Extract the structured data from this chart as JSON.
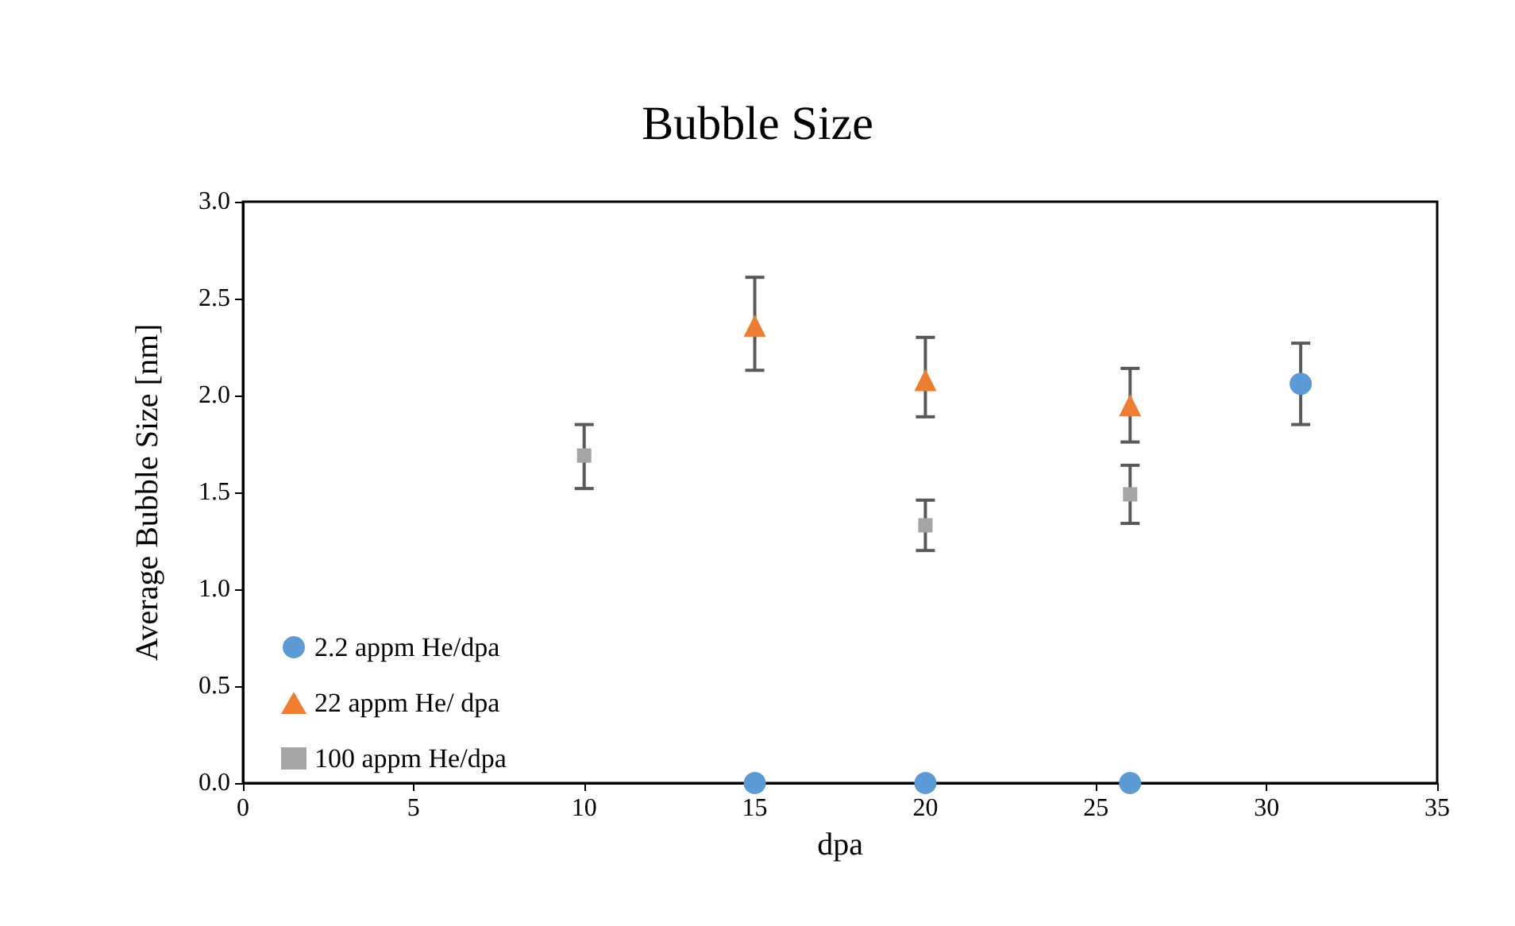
{
  "chart_data": {
    "type": "scatter",
    "title": "Bubble Size",
    "xlabel": "dpa",
    "ylabel": "Average Bubble Size [nm]",
    "xlim": [
      0,
      35
    ],
    "xticks": [
      0,
      5,
      10,
      15,
      20,
      25,
      30,
      35
    ],
    "ylim": [
      0,
      3
    ],
    "yticks": [
      {
        "value": 0,
        "label": "0.0"
      },
      {
        "value": 0.5,
        "label": "0.5"
      },
      {
        "value": 1,
        "label": "1.0"
      },
      {
        "value": 1.5,
        "label": "1.5"
      },
      {
        "value": 2,
        "label": "2.0"
      },
      {
        "value": 2.5,
        "label": "2.5"
      },
      {
        "value": 3,
        "label": "3.0"
      }
    ],
    "grid": false,
    "legend": "bottom left",
    "series": [
      {
        "name": "2.2 appm He/dpa",
        "color": "#5b9bd5",
        "marker": "circle",
        "x": [
          15,
          20,
          26,
          31
        ],
        "values": [
          0,
          0,
          0,
          2.06
        ],
        "errors": [
          null,
          null,
          null,
          [
            1.85,
            2.27
          ]
        ]
      },
      {
        "name": "22 appm He/ dpa",
        "color": "#ed7d31",
        "marker": "triangle",
        "x": [
          15,
          20,
          26
        ],
        "values": [
          2.36,
          2.08,
          1.95
        ],
        "errors": [
          [
            2.13,
            2.61
          ],
          [
            1.89,
            2.3
          ],
          [
            1.76,
            2.14
          ]
        ]
      },
      {
        "name": "100 appm He/dpa",
        "color": "#a5a5a5",
        "marker": "square",
        "x": [
          10,
          20,
          26
        ],
        "values": [
          1.69,
          1.33,
          1.49
        ],
        "errors": [
          [
            1.52,
            1.85
          ],
          [
            1.2,
            1.46
          ],
          [
            1.34,
            1.64
          ]
        ]
      }
    ]
  }
}
